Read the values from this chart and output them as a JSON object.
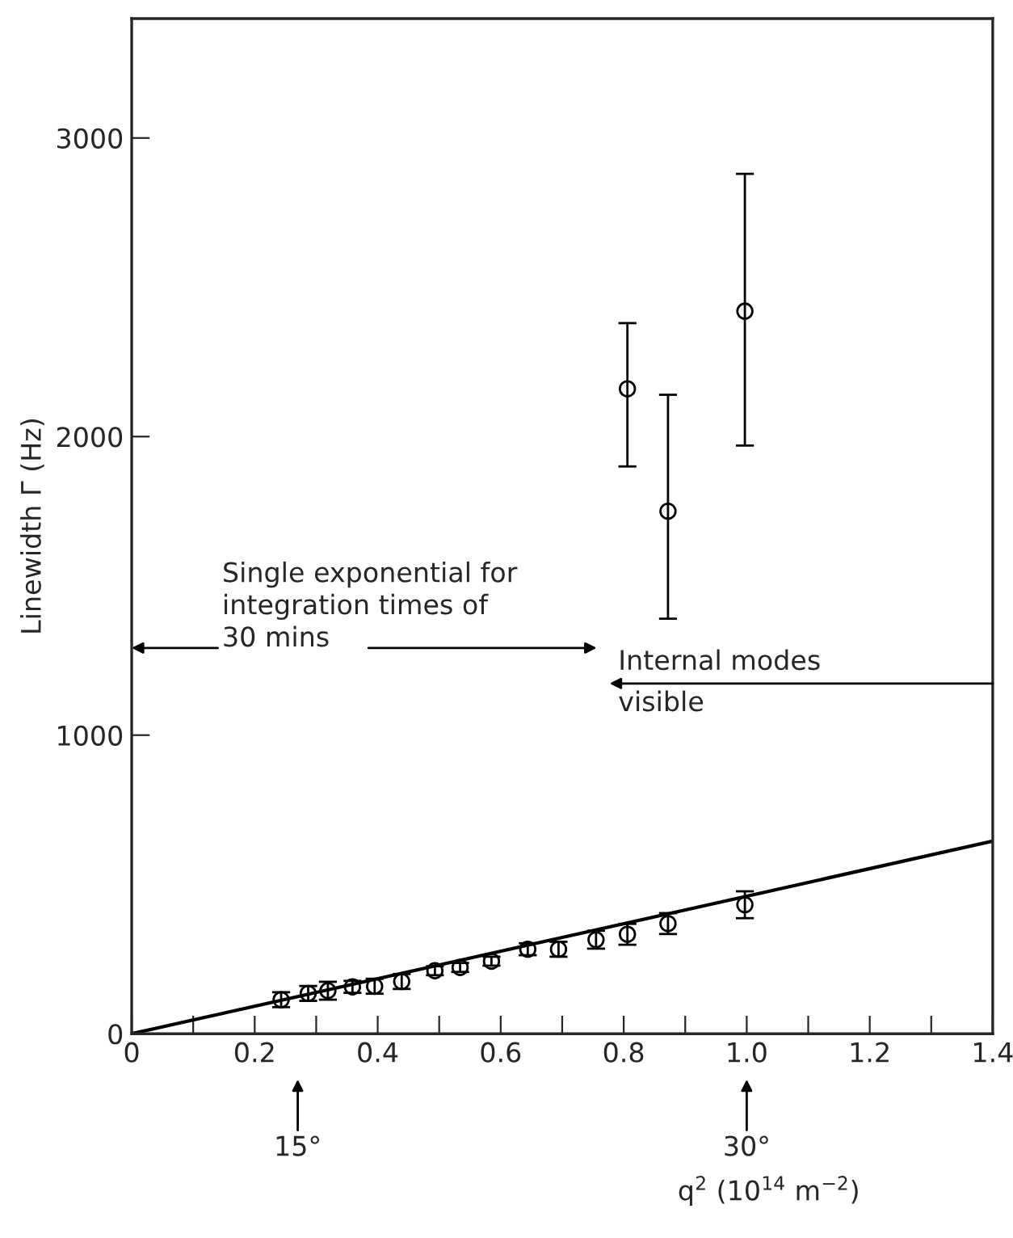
{
  "chart_data": {
    "type": "scatter",
    "xlabel": "q$^{2}$ (10$^{14}$ m$^{−2}$)",
    "ylabel": "Linewidth Γ (Hz)",
    "xlim": [
      0,
      1.4
    ],
    "ylim": [
      0,
      3400
    ],
    "xticks": [
      0,
      {
        "value": 0.1,
        "label": null
      },
      0.2,
      {
        "value": 0.3,
        "label": null
      },
      0.4,
      {
        "value": 0.5,
        "label": null
      },
      0.6,
      {
        "value": 0.7,
        "label": null
      },
      0.8,
      {
        "value": 0.9,
        "label": null
      },
      {
        "value": 1.0,
        "label": "1.0"
      },
      {
        "value": 1.1,
        "label": null
      },
      1.2,
      {
        "value": 1.3,
        "label": null
      },
      1.4
    ],
    "yticks": [
      0,
      1000,
      2000,
      3000
    ],
    "marker": "circle",
    "grid": false,
    "series": [
      {
        "type": "scatter",
        "color": "#000000",
        "x": [
          0.243,
          0.287,
          0.319,
          0.359,
          0.395,
          0.439,
          0.493,
          0.534,
          0.585,
          0.644,
          0.694,
          0.755,
          0.806,
          0.872,
          0.997,
          0.806,
          0.872,
          0.997
        ],
        "values": [
          114,
          135,
          144,
          157,
          159,
          175,
          211,
          222,
          243,
          283,
          283,
          315,
          333,
          369,
          432,
          2160,
          1750,
          2420
        ],
        "errors": [
          25,
          25,
          30,
          20,
          25,
          25,
          15,
          15,
          15,
          20,
          25,
          30,
          35,
          35,
          45,
          [
            1900,
            2380
          ],
          [
            1390,
            2140
          ],
          [
            1970,
            2880
          ]
        ]
      },
      {
        "type": "line",
        "color": "#000000",
        "marker": "none",
        "x": [
          0,
          1.4
        ],
        "values": [
          0,
          645
        ]
      }
    ],
    "annotations": [
      "Single exponential for\nintegration times of\n30 mins",
      "Internal modes\nvisible",
      "15°",
      "30°"
    ]
  }
}
